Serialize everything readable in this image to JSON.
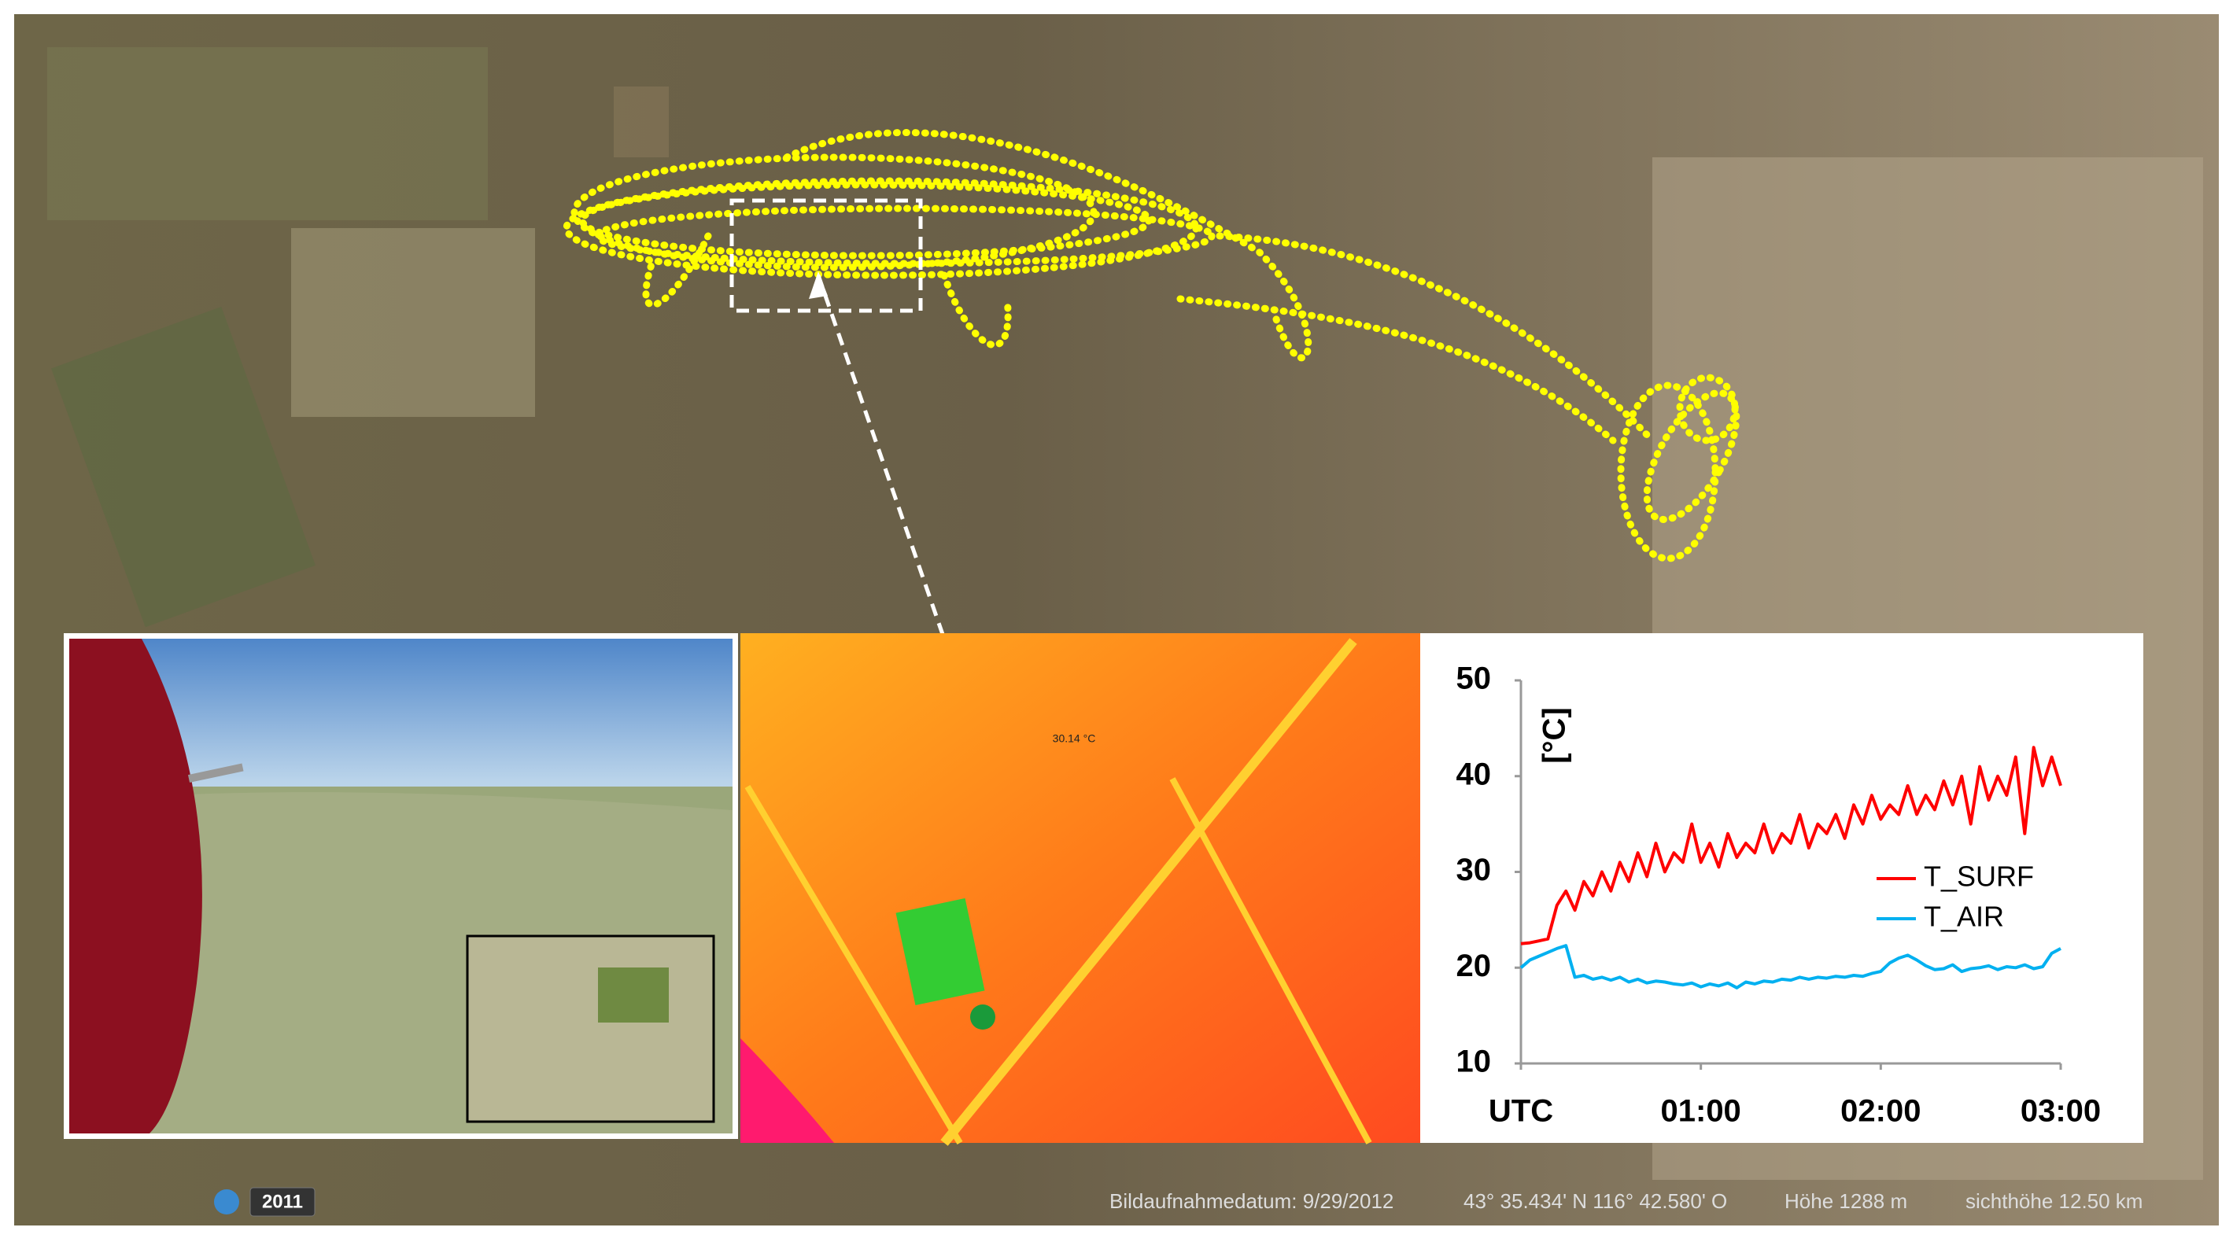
{
  "map": {
    "status": {
      "year": "2011",
      "date": "Bildaufnahmedatum: 9/29/2012",
      "coordinates": "43° 35.434' N  116° 42.580' O",
      "elevation": "Höhe  1288 m",
      "eye_altitude": "sichthöhe  12.50 km"
    }
  },
  "thermal": {
    "label": "30.14 °C"
  },
  "chart_data": {
    "type": "line",
    "y_label": "[°C]",
    "x": [
      0,
      0.05,
      0.1,
      0.15,
      0.2,
      0.25,
      0.3,
      0.35,
      0.4,
      0.45,
      0.5,
      0.55,
      0.6,
      0.65,
      0.7,
      0.75,
      0.8,
      0.85,
      0.9,
      0.95,
      1,
      1.05,
      1.1,
      1.15,
      1.2,
      1.25,
      1.3,
      1.35,
      1.4,
      1.45,
      1.5,
      1.55,
      1.6,
      1.65,
      1.7,
      1.75,
      1.8,
      1.85,
      1.9,
      1.95,
      2,
      2.05,
      2.1,
      2.15,
      2.2,
      2.25,
      2.3,
      2.35,
      2.4,
      2.45,
      2.5,
      2.55,
      2.6,
      2.65,
      2.7,
      2.75,
      2.8,
      2.85,
      2.9,
      2.95,
      3
    ],
    "series": [
      {
        "name": "T_SURF",
        "color": "#ff0000",
        "values": [
          22.5,
          22.6,
          22.8,
          23,
          26.5,
          28,
          26,
          29,
          27.5,
          30,
          28,
          31,
          29,
          32,
          29.5,
          33,
          30,
          32,
          31,
          35,
          31,
          33,
          30.5,
          34,
          31.5,
          33,
          32,
          35,
          32,
          34,
          33,
          36,
          32.5,
          35,
          34,
          36,
          33.5,
          37,
          35,
          38,
          35.5,
          37,
          36,
          39,
          36,
          38,
          36.5,
          39.5,
          37,
          40,
          35,
          41,
          37.5,
          40,
          38,
          42,
          34,
          43,
          39,
          42,
          39
        ]
      },
      {
        "name": "T_AIR",
        "color": "#00b0f0",
        "values": [
          20,
          20.8,
          21.2,
          21.6,
          22,
          22.3,
          19,
          19.2,
          18.8,
          19,
          18.7,
          19,
          18.5,
          18.8,
          18.4,
          18.6,
          18.5,
          18.3,
          18.2,
          18.4,
          18,
          18.3,
          18.1,
          18.4,
          17.9,
          18.5,
          18.3,
          18.6,
          18.5,
          18.8,
          18.7,
          19,
          18.8,
          19,
          18.9,
          19.1,
          19,
          19.2,
          19.1,
          19.4,
          19.6,
          20.5,
          21,
          21.3,
          20.8,
          20.2,
          19.8,
          19.9,
          20.3,
          19.6,
          19.9,
          20,
          20.2,
          19.8,
          20.1,
          20,
          20.3,
          19.9,
          20.1,
          21.5,
          22
        ]
      }
    ],
    "xlim": [
      0,
      3
    ],
    "xticks": [
      {
        "value": 0,
        "label": "UTC"
      },
      {
        "value": 1,
        "label": "01:00"
      },
      {
        "value": 2,
        "label": "02:00"
      },
      {
        "value": 3,
        "label": "03:00"
      }
    ],
    "ylim": [
      10,
      50
    ],
    "yticks": [
      10,
      20,
      30,
      40,
      50
    ],
    "legend": "center-right"
  }
}
